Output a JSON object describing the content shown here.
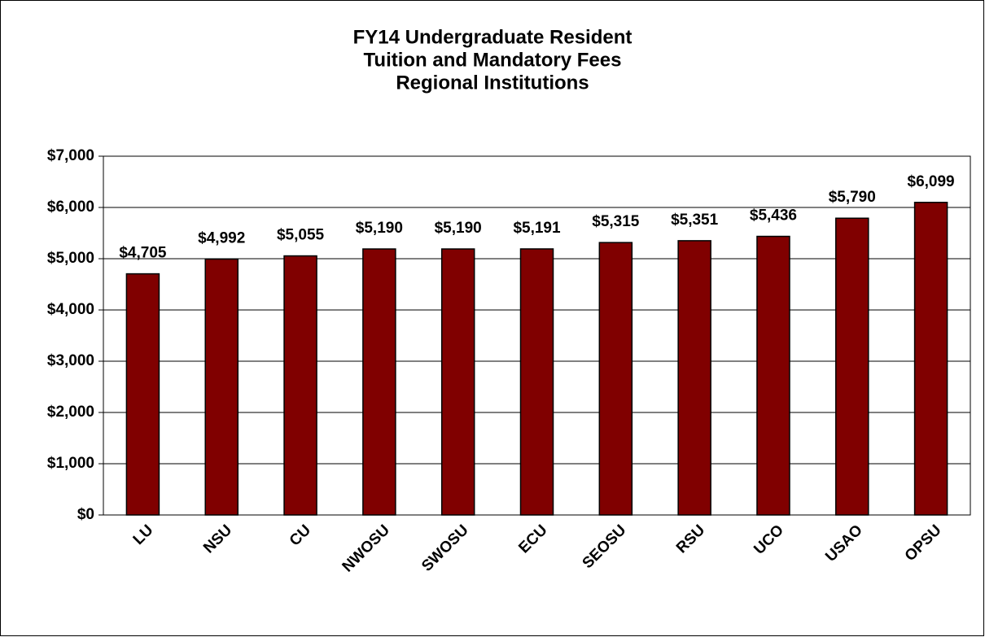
{
  "chart_data": {
    "type": "bar",
    "title": [
      "FY14 Undergraduate Resident",
      "Tuition and Mandatory Fees",
      "Regional Institutions"
    ],
    "categories": [
      "LU",
      "NSU",
      "CU",
      "NWOSU",
      "SWOSU",
      "ECU",
      "SEOSU",
      "RSU",
      "UCO",
      "USAO",
      "OPSU"
    ],
    "values": [
      4705,
      4992,
      5055,
      5190,
      5190,
      5191,
      5315,
      5351,
      5436,
      5790,
      6099
    ],
    "value_labels": [
      "$4,705",
      "$4,992",
      "$5,055",
      "$5,190",
      "$5,190",
      "$5,191",
      "$5,315",
      "$5,351",
      "$5,436",
      "$5,790",
      "$6,099"
    ],
    "color": "#800000",
    "ylim": [
      0,
      7000
    ],
    "yticks": [
      {
        "value": 0,
        "label": "$0"
      },
      {
        "value": 1000,
        "label": "$1,000"
      },
      {
        "value": 2000,
        "label": "$2,000"
      },
      {
        "value": 3000,
        "label": "$3,000"
      },
      {
        "value": 4000,
        "label": "$4,000"
      },
      {
        "value": 5000,
        "label": "$5,000"
      },
      {
        "value": 6000,
        "label": "$6,000"
      },
      {
        "value": 7000,
        "label": "$7,000"
      }
    ],
    "grid": true
  }
}
